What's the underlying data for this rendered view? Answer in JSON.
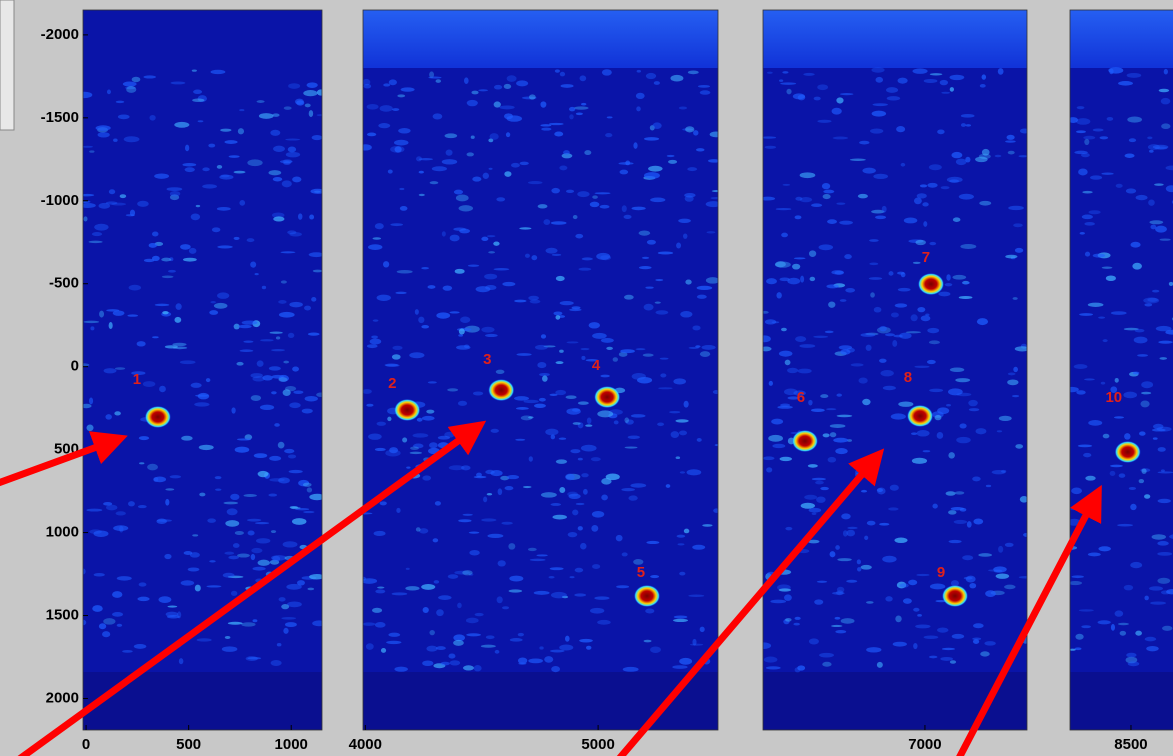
{
  "chart_data": [
    {
      "type": "heatmap",
      "xlim": [
        -15,
        1150
      ],
      "xticks": [
        0,
        500,
        1000
      ],
      "ylim": [
        -2150,
        2190
      ],
      "y_inverted": true,
      "yticks": [
        -2000,
        -1500,
        -1000,
        -500,
        0,
        500,
        1000,
        1500,
        2000
      ],
      "points": {
        "x": [
          350
        ],
        "y": [
          303
        ]
      },
      "annotations": [
        {
          "text": "1",
          "x": 248,
          "y": 80
        }
      ]
    },
    {
      "type": "heatmap",
      "xlim": [
        3990,
        5515
      ],
      "xticks": [
        4000,
        5000
      ],
      "ylim": [
        -2150,
        2190
      ],
      "y_inverted": true,
      "points": {
        "x": [
          4180,
          4584,
          5039,
          5210
        ],
        "y": [
          261,
          141,
          183,
          1382
        ]
      },
      "annotations": [
        {
          "text": "2",
          "x": 4116,
          "y": 105
        },
        {
          "text": "3",
          "x": 4524,
          "y": -40
        },
        {
          "text": "4",
          "x": 4991,
          "y": -4
        },
        {
          "text": "5",
          "x": 5184,
          "y": 1244
        }
      ]
    },
    {
      "type": "heatmap",
      "xlim": [
        6305,
        7438
      ],
      "xticks": [
        7000
      ],
      "ylim": [
        -2150,
        2190
      ],
      "y_inverted": true,
      "points": {
        "x": [
          6485,
          7026,
          6979,
          7129
        ],
        "y": [
          448,
          -498,
          297,
          1382
        ]
      },
      "annotations": [
        {
          "text": "6",
          "x": 6468,
          "y": 189
        },
        {
          "text": "7",
          "x": 7004,
          "y": -655
        },
        {
          "text": "8",
          "x": 6927,
          "y": 68
        },
        {
          "text": "9",
          "x": 7069,
          "y": 1244
        }
      ]
    },
    {
      "type": "heatmap",
      "xlim": [
        8255,
        8697
      ],
      "xticks": [
        8500
      ],
      "ylim": [
        -2150,
        2190
      ],
      "y_inverted": true,
      "points": {
        "x": [
          8487
        ],
        "y": [
          514
        ]
      },
      "annotations": [
        {
          "text": "10",
          "x": 8431,
          "y": 189
        }
      ]
    }
  ]
}
